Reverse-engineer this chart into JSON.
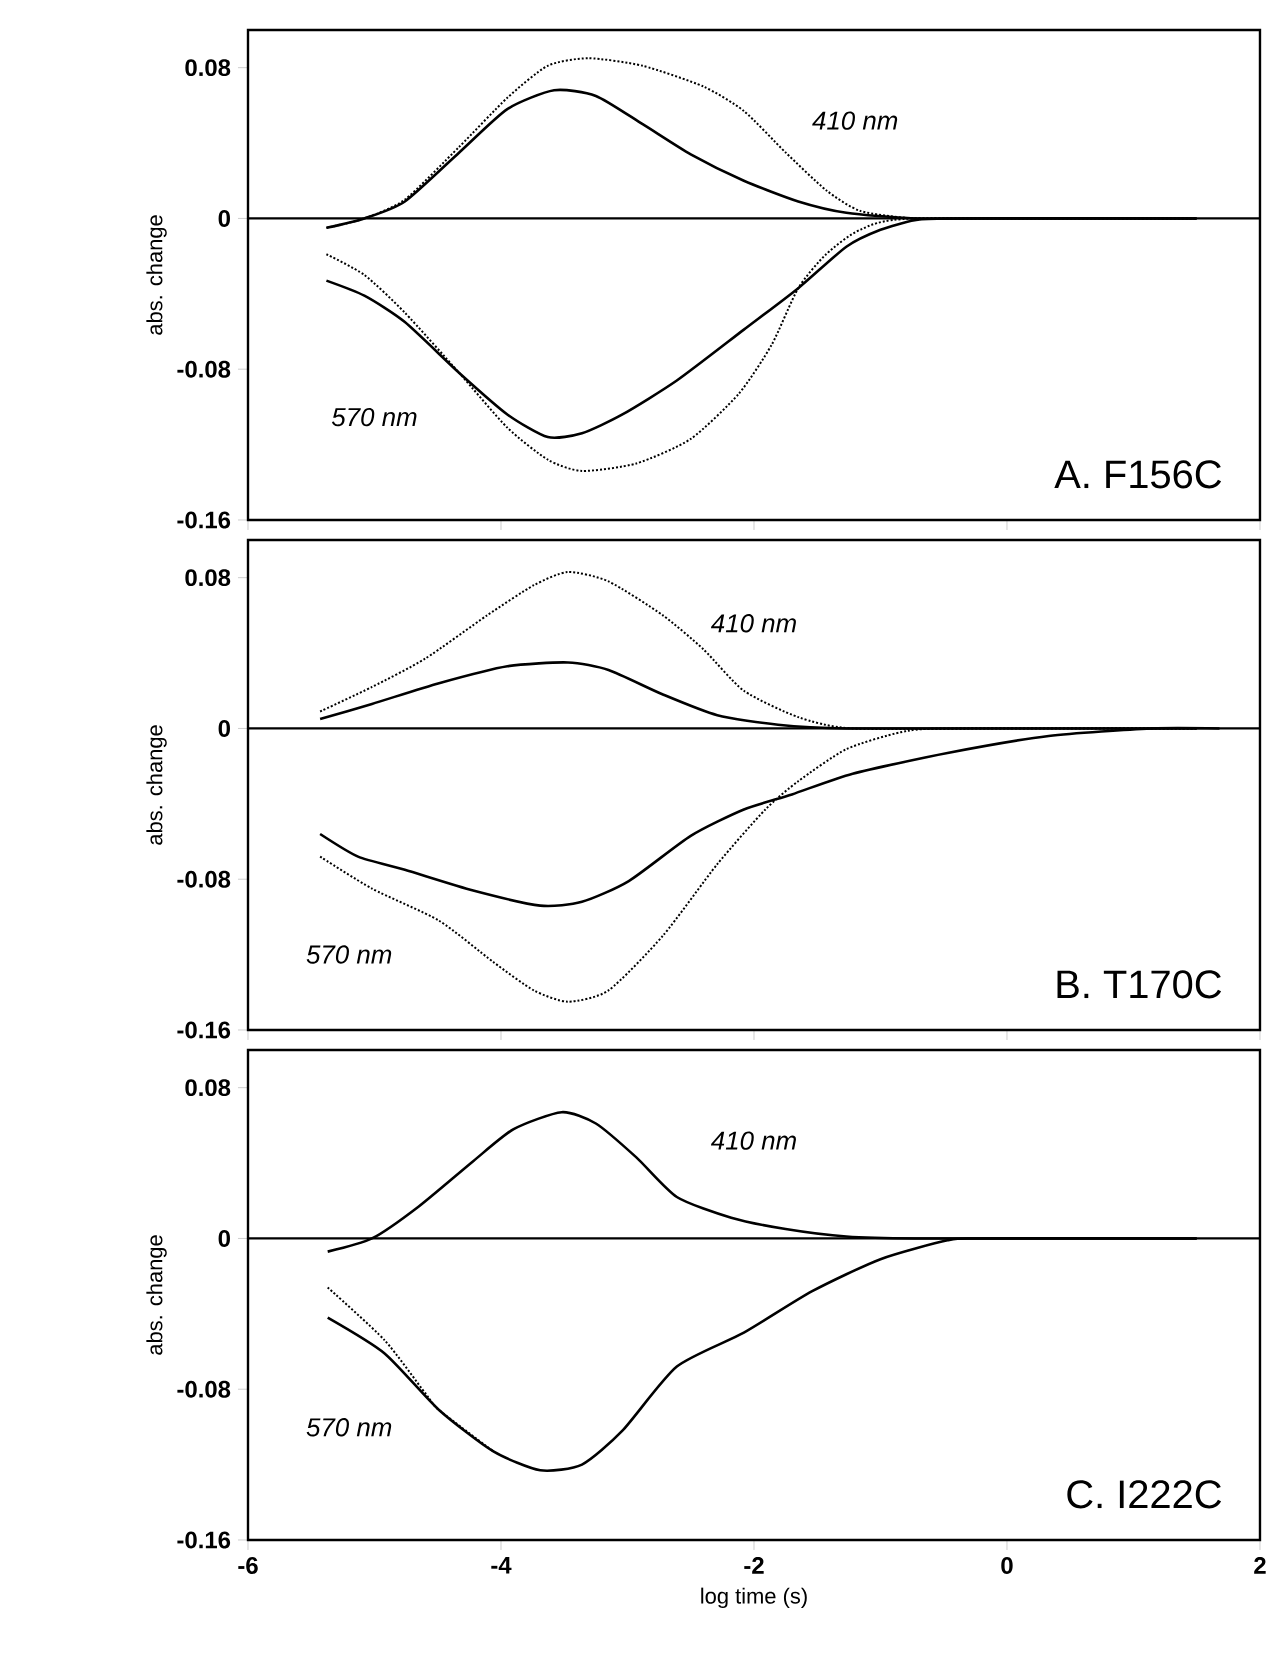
{
  "chart_data": [
    {
      "type": "line",
      "ylabel": "abs. change",
      "xlim": [
        -6,
        2
      ],
      "ylim": [
        -0.16,
        0.1
      ],
      "xticks": [
        -6,
        -4,
        -2,
        0,
        2
      ],
      "yticks": [
        0.08,
        0,
        -0.08,
        -0.16
      ],
      "tick_labels": "y",
      "ref_lines": [
        {
          "axis": "y",
          "value": 0
        }
      ],
      "annotations": [
        "410 nm",
        "570 nm",
        "A. F156C"
      ],
      "series": [
        {
          "color": "#000000",
          "line_style": "solid",
          "x": [
            -5.38,
            -5.08,
            -4.76,
            -4.33,
            -3.95,
            -3.58,
            -3.25,
            -2.88,
            -2.5,
            -2.08,
            -1.65,
            -1.27,
            -0.73,
            0.06,
            1.5
          ],
          "values": [
            -0.005,
            0,
            0.009,
            0.035,
            0.058,
            0.068,
            0.065,
            0.05,
            0.034,
            0.02,
            0.009,
            0.003,
            0,
            0,
            0
          ]
        },
        {
          "color": "#000000",
          "line_style": "dotted",
          "x": [
            -5.38,
            -5.08,
            -4.76,
            -4.33,
            -3.95,
            -3.63,
            -3.31,
            -2.88,
            -2.4,
            -2.08,
            -1.75,
            -1.43,
            -1.16,
            -0.73,
            0.06,
            1.5
          ],
          "values": [
            -0.005,
            0,
            0.01,
            0.038,
            0.064,
            0.081,
            0.085,
            0.081,
            0.07,
            0.057,
            0.035,
            0.015,
            0.004,
            0,
            0,
            0
          ]
        },
        {
          "color": "#000000",
          "line_style": "solid",
          "x": [
            -5.38,
            -5.08,
            -4.76,
            -4.33,
            -3.95,
            -3.63,
            -3.36,
            -3.04,
            -2.61,
            -2.08,
            -1.65,
            -1.27,
            -1.0,
            -0.73,
            -0.46,
            1.5
          ],
          "values": [
            -0.033,
            -0.041,
            -0.055,
            -0.082,
            -0.104,
            -0.116,
            -0.114,
            -0.104,
            -0.086,
            -0.059,
            -0.037,
            -0.015,
            -0.006,
            -0.001,
            0,
            0
          ]
        },
        {
          "color": "#000000",
          "line_style": "dotted",
          "x": [
            -5.38,
            -5.08,
            -4.76,
            -4.33,
            -3.95,
            -3.63,
            -3.36,
            -2.93,
            -2.5,
            -2.12,
            -1.86,
            -1.65,
            -1.43,
            -1.16,
            -0.73,
            1.5
          ],
          "values": [
            -0.019,
            -0.03,
            -0.05,
            -0.082,
            -0.111,
            -0.128,
            -0.134,
            -0.13,
            -0.117,
            -0.093,
            -0.067,
            -0.037,
            -0.019,
            -0.006,
            0,
            0
          ]
        }
      ]
    },
    {
      "type": "line",
      "ylabel": "abs. change",
      "xlim": [
        -6,
        2
      ],
      "ylim": [
        -0.16,
        0.1
      ],
      "xticks": [
        -6,
        -4,
        -2,
        0,
        2
      ],
      "yticks": [
        0.08,
        0,
        -0.08,
        -0.16
      ],
      "tick_labels": "y",
      "ref_lines": [
        {
          "axis": "y",
          "value": 0
        }
      ],
      "annotations": [
        "410 nm",
        "570 nm",
        "B. T170C"
      ],
      "series": [
        {
          "color": "#000000",
          "line_style": "solid",
          "x": [
            -5.43,
            -5.02,
            -4.49,
            -3.95,
            -3.47,
            -3.15,
            -2.72,
            -2.29,
            -1.81,
            -1.27,
            0.0,
            1.5
          ],
          "values": [
            0.005,
            0.013,
            0.024,
            0.033,
            0.035,
            0.031,
            0.018,
            0.007,
            0.002,
            0,
            0,
            0
          ]
        },
        {
          "color": "#000000",
          "line_style": "dotted",
          "x": [
            -5.43,
            -5.02,
            -4.6,
            -4.11,
            -3.74,
            -3.47,
            -3.15,
            -2.72,
            -2.4,
            -2.08,
            -1.65,
            -1.22,
            0.0,
            1.5
          ],
          "values": [
            0.009,
            0.022,
            0.037,
            0.06,
            0.076,
            0.083,
            0.078,
            0.06,
            0.042,
            0.02,
            0.006,
            0,
            0,
            0
          ]
        },
        {
          "color": "#000000",
          "line_style": "solid",
          "x": [
            -5.43,
            -5.13,
            -4.76,
            -4.22,
            -3.69,
            -3.36,
            -2.99,
            -2.5,
            -2.08,
            -1.7,
            -1.22,
            -0.47,
            0.33,
            1.14,
            1.68
          ],
          "values": [
            -0.056,
            -0.068,
            -0.075,
            -0.086,
            -0.094,
            -0.092,
            -0.081,
            -0.057,
            -0.043,
            -0.035,
            -0.024,
            -0.013,
            -0.004,
            0,
            0
          ]
        },
        {
          "color": "#000000",
          "line_style": "dotted",
          "x": [
            -5.43,
            -5.02,
            -4.49,
            -4.06,
            -3.74,
            -3.47,
            -3.15,
            -2.72,
            -2.29,
            -1.91,
            -1.65,
            -1.27,
            -0.84,
            -0.47,
            1.5
          ],
          "values": [
            -0.068,
            -0.085,
            -0.102,
            -0.124,
            -0.139,
            -0.145,
            -0.139,
            -0.11,
            -0.072,
            -0.043,
            -0.028,
            -0.011,
            -0.002,
            0,
            0
          ]
        }
      ]
    },
    {
      "type": "line",
      "xlabel": "log time (s)",
      "ylabel": "abs. change",
      "xlim": [
        -6,
        2
      ],
      "ylim": [
        -0.16,
        0.1
      ],
      "xticks": [
        -6,
        -4,
        -2,
        0,
        2
      ],
      "yticks": [
        0.08,
        0,
        -0.08,
        -0.16
      ],
      "ref_lines": [
        {
          "axis": "y",
          "value": 0
        }
      ],
      "annotations": [
        "410 nm",
        "570 nm",
        "C. I222C"
      ],
      "series": [
        {
          "color": "#000000",
          "line_style": "solid",
          "x": [
            -5.37,
            -5.02,
            -4.65,
            -4.22,
            -3.9,
            -3.52,
            -3.25,
            -2.93,
            -2.61,
            -2.18,
            -1.75,
            -1.27,
            -0.73,
            1.5
          ],
          "values": [
            -0.007,
            0,
            0.017,
            0.041,
            0.058,
            0.067,
            0.061,
            0.043,
            0.022,
            0.011,
            0.005,
            0.001,
            0,
            0
          ]
        },
        {
          "color": "#000000",
          "line_style": "solid",
          "x": [
            -5.37,
            -4.92,
            -4.49,
            -4.06,
            -3.69,
            -3.36,
            -3.04,
            -2.61,
            -2.08,
            -1.54,
            -1.0,
            -0.47,
            -0.2,
            1.5
          ],
          "values": [
            -0.042,
            -0.061,
            -0.091,
            -0.113,
            -0.123,
            -0.12,
            -0.102,
            -0.068,
            -0.05,
            -0.028,
            -0.011,
            -0.001,
            0,
            0
          ]
        },
        {
          "color": "#000000",
          "line_style": "dotted",
          "x": [
            -5.37,
            -4.92,
            -4.6,
            -4.49,
            -4.06
          ],
          "values": [
            -0.026,
            -0.054,
            -0.082,
            -0.091,
            -0.113
          ]
        }
      ]
    }
  ]
}
